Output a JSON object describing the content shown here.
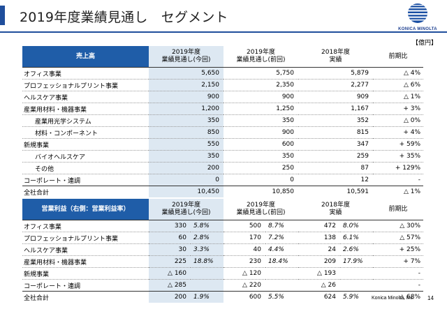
{
  "page": {
    "title": "2019年度業績見通し　セグメント",
    "unit": "【億円】",
    "company": "Konica Minolta, Inc.",
    "page_number": "14",
    "logo_text": "KONICA MINOLTA"
  },
  "colors": {
    "accent": "#1f4e9c",
    "header_fill": "#1f5da8",
    "shade": "#dde8f2"
  },
  "sales": {
    "header": {
      "label": "売上高",
      "c1a": "2019年度",
      "c1b": "業績見通し(今回)",
      "c2a": "2019年度",
      "c2b": "業績見通し(前回)",
      "c3a": "2018年度",
      "c3b": "実績",
      "c4": "前期比"
    },
    "rows": [
      {
        "name": "オフィス事業",
        "v1": "5,650",
        "v2": "5,750",
        "v3": "5,879",
        "chg": "△ 4%"
      },
      {
        "name": "プロフェッショナルプリント事業",
        "v1": "2,150",
        "v2": "2,350",
        "v3": "2,277",
        "chg": "△ 6%"
      },
      {
        "name": "ヘルスケア事業",
        "v1": "900",
        "v2": "900",
        "v3": "909",
        "chg": "△ 1%"
      },
      {
        "name": "産業用材料・機器事業",
        "v1": "1,200",
        "v2": "1,250",
        "v3": "1,167",
        "chg": "+ 3%"
      },
      {
        "name": "産業用光学システム",
        "v1": "350",
        "v2": "350",
        "v3": "352",
        "chg": "△ 0%"
      },
      {
        "name": "材料・コンポーネント",
        "v1": "850",
        "v2": "900",
        "v3": "815",
        "chg": "+ 4%"
      },
      {
        "name": "新規事業",
        "v1": "550",
        "v2": "600",
        "v3": "347",
        "chg": "+ 59%"
      },
      {
        "name": "バイオヘルスケア",
        "v1": "350",
        "v2": "350",
        "v3": "259",
        "chg": "+ 35%"
      },
      {
        "name": "その他",
        "v1": "200",
        "v2": "250",
        "v3": "87",
        "chg": "+ 129%"
      },
      {
        "name": "コーポレート・連調",
        "v1": "0",
        "v2": "0",
        "v3": "12",
        "chg": "-"
      },
      {
        "name": "全社合計",
        "v1": "10,450",
        "v2": "10,850",
        "v3": "10,591",
        "chg": "△ 1%"
      }
    ]
  },
  "op": {
    "header": {
      "label": "営業利益（右側：営業利益率）",
      "c1a": "2019年度",
      "c1b": "業績見通し(今回)",
      "c2a": "2019年度",
      "c2b": "業績見通し(前回)",
      "c3a": "2018年度",
      "c3b": "実績",
      "c4": "前期比"
    },
    "rows": [
      {
        "name": "オフィス事業",
        "v1": "330",
        "p1": "5.8%",
        "v2": "500",
        "p2": "8.7%",
        "v3": "472",
        "p3": "8.0%",
        "chg": "△ 30%"
      },
      {
        "name": "プロフェッショナルプリント事業",
        "v1": "60",
        "p1": "2.8%",
        "v2": "170",
        "p2": "7.2%",
        "v3": "138",
        "p3": "6.1%",
        "chg": "△ 57%"
      },
      {
        "name": "ヘルスケア事業",
        "v1": "30",
        "p1": "3.3%",
        "v2": "40",
        "p2": "4.4%",
        "v3": "24",
        "p3": "2.6%",
        "chg": "+ 25%"
      },
      {
        "name": "産業用材料・機器事業",
        "v1": "225",
        "p1": "18.8%",
        "v2": "230",
        "p2": "18.4%",
        "v3": "209",
        "p3": "17.9%",
        "chg": "+ 7%"
      },
      {
        "name": "新規事業",
        "v1": "△ 160",
        "p1": "",
        "v2": "△ 120",
        "p2": "",
        "v3": "△ 193",
        "p3": "",
        "chg": "-"
      },
      {
        "name": "コーポレート・連調",
        "v1": "△ 285",
        "p1": "",
        "v2": "△ 220",
        "p2": "",
        "v3": "△ 26",
        "p3": "",
        "chg": "-"
      },
      {
        "name": "全社合計",
        "v1": "200",
        "p1": "1.9%",
        "v2": "600",
        "p2": "5.5%",
        "v3": "624",
        "p3": "5.9%",
        "chg": "△ 68%"
      }
    ]
  }
}
